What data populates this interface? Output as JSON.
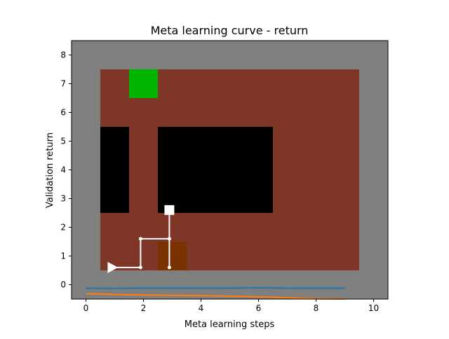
{
  "chart_data": {
    "type": "line",
    "title": "Meta learning curve - return",
    "xlabel": "Meta learning steps",
    "ylabel": "Validation return",
    "xlim": [
      -0.5,
      10.5
    ],
    "ylim": [
      -0.5,
      8.5
    ],
    "x_ticks": [
      0,
      2,
      4,
      6,
      8,
      10
    ],
    "y_ticks": [
      0,
      1,
      2,
      3,
      4,
      5,
      6,
      7,
      8
    ],
    "x_tick_labels": [
      "0",
      "2",
      "4",
      "6",
      "8",
      "10"
    ],
    "y_tick_labels": [
      "0",
      "1",
      "2",
      "3",
      "4",
      "5",
      "6",
      "7",
      "8"
    ],
    "grid": false,
    "background_image": {
      "description_colors": {
        "wall": "#7f7f7f",
        "floor": "#7e3626",
        "obstacle": "#000000",
        "goal": "#00b400",
        "box": "#7a3200",
        "path": "#ffffff"
      },
      "cells": [
        {
          "kind": "floor",
          "x": [
            0.5,
            9.5
          ],
          "y": [
            0.5,
            7.5
          ]
        },
        {
          "kind": "obstacle",
          "x": [
            0.5,
            1.5
          ],
          "y": [
            2.5,
            5.5
          ]
        },
        {
          "kind": "obstacle",
          "x": [
            2.5,
            6.5
          ],
          "y": [
            2.5,
            5.5
          ]
        },
        {
          "kind": "goal",
          "x": [
            1.5,
            2.5
          ],
          "y": [
            6.5,
            7.5
          ]
        },
        {
          "kind": "box",
          "x": [
            2.5,
            3.5
          ],
          "y": [
            0.5,
            1.5
          ]
        }
      ],
      "agent_path": [
        [
          0.9,
          0.6
        ],
        [
          1.9,
          0.6
        ],
        [
          1.9,
          1.6
        ],
        [
          2.9,
          1.6
        ],
        [
          2.9,
          0.6
        ],
        [
          2.9,
          1.6
        ],
        [
          2.9,
          2.6
        ]
      ],
      "agent_start": [
        0.9,
        0.6
      ],
      "agent_end": [
        2.9,
        2.6
      ]
    },
    "series": [
      {
        "color": "#1f77b4",
        "x": [
          0,
          1,
          2,
          3,
          4,
          5,
          6,
          7,
          8,
          9
        ],
        "y": [
          -0.12,
          -0.13,
          -0.12,
          -0.12,
          -0.12,
          -0.12,
          -0.11,
          -0.12,
          -0.12,
          -0.12
        ]
      },
      {
        "color": "#ff7f0e",
        "x": [
          0,
          1,
          2,
          3,
          4,
          5,
          6,
          7,
          8,
          9
        ],
        "y": [
          -0.31,
          -0.34,
          -0.36,
          -0.37,
          -0.38,
          -0.4,
          -0.42,
          -0.45,
          -0.49,
          -0.5
        ]
      }
    ]
  }
}
